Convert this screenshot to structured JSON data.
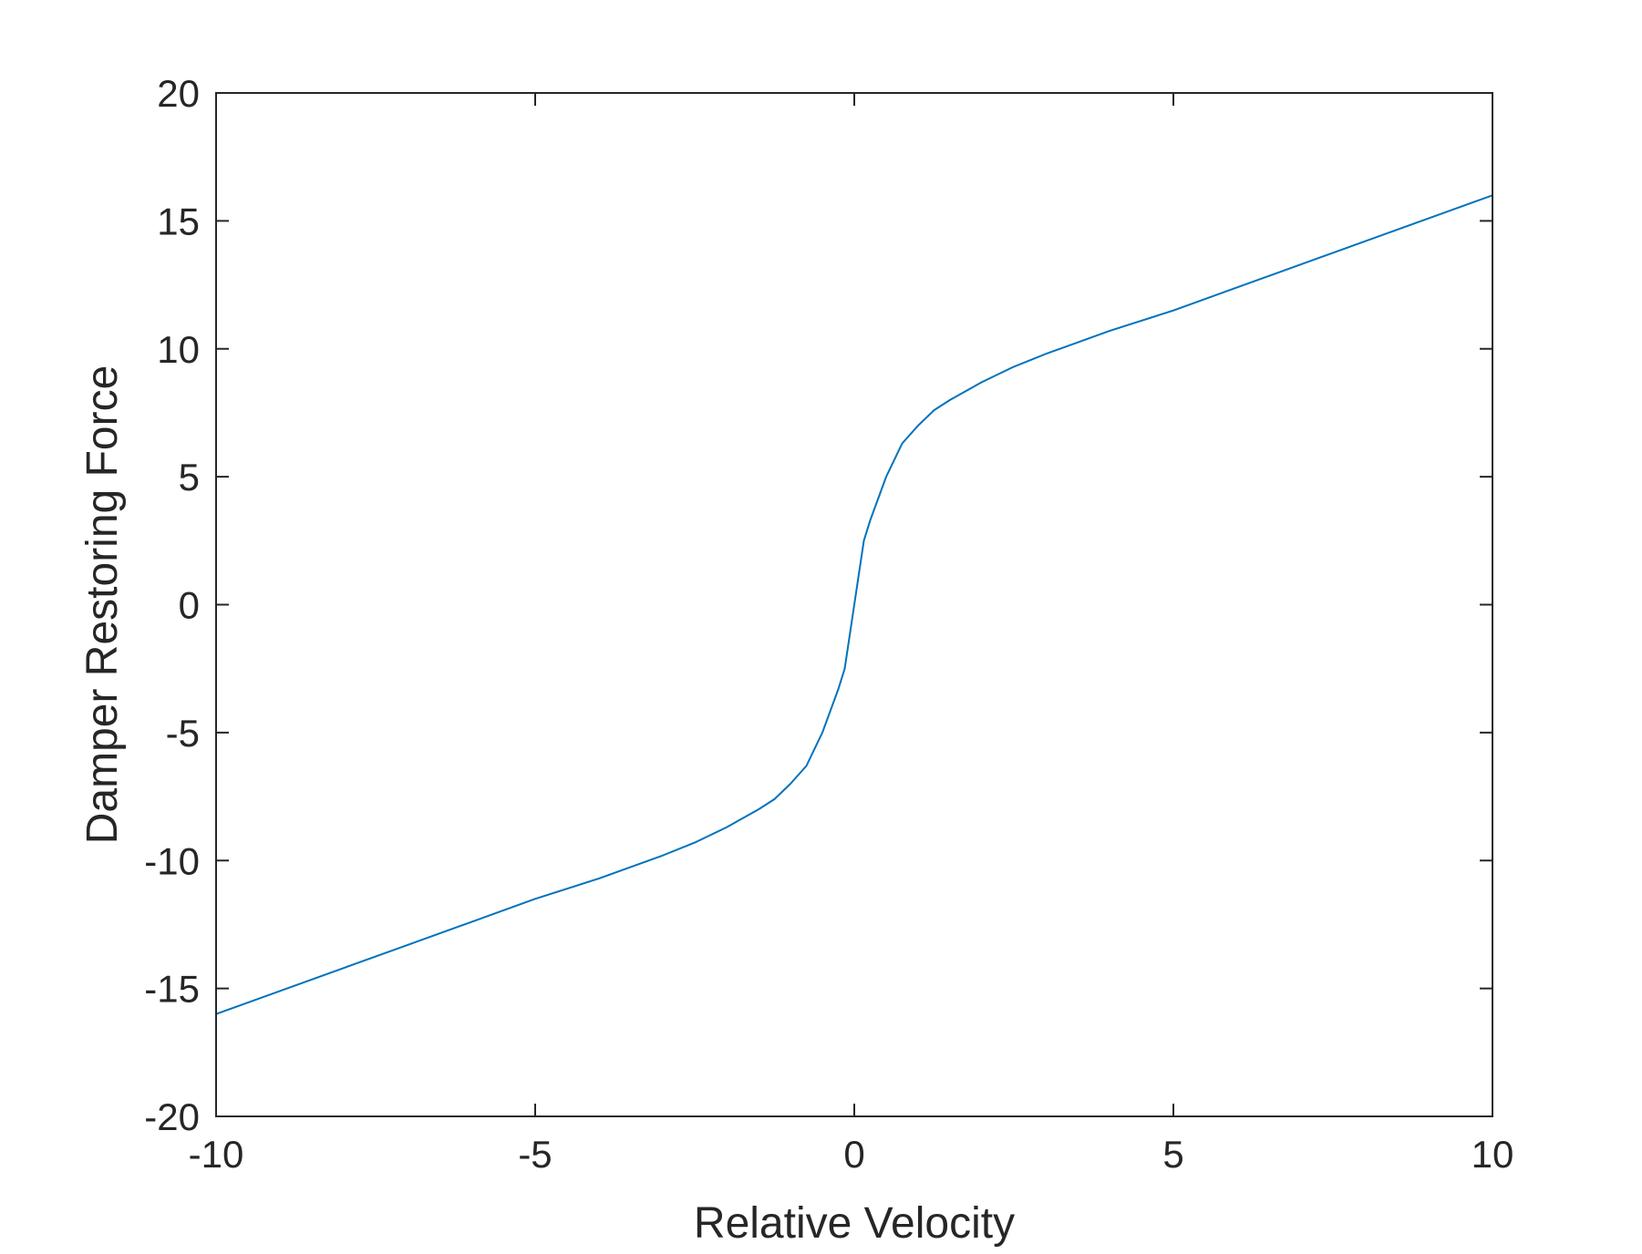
{
  "chart_data": {
    "type": "line",
    "title": "",
    "xlabel": "Relative Velocity",
    "ylabel": "Damper Restoring Force",
    "xlim": [
      -10,
      10
    ],
    "ylim": [
      -20,
      20
    ],
    "x_ticks": [
      -10,
      -5,
      0,
      5,
      10
    ],
    "y_ticks": [
      -20,
      -15,
      -10,
      -5,
      0,
      5,
      10,
      15,
      20
    ],
    "grid": false,
    "legend": "none",
    "series": [
      {
        "color": "#0072BD",
        "x": [
          -10,
          -9,
          -8,
          -7,
          -6,
          -5,
          -4,
          -3,
          -2.5,
          -2,
          -1.5,
          -1.25,
          -1,
          -0.75,
          -0.5,
          -0.25,
          -0.15,
          0,
          0.15,
          0.25,
          0.5,
          0.75,
          1,
          1.25,
          1.5,
          2,
          2.5,
          3,
          4,
          5,
          6,
          7,
          8,
          9,
          10
        ],
        "y": [
          -16.0,
          -15.1,
          -14.2,
          -13.3,
          -12.4,
          -11.5,
          -10.7,
          -9.8,
          -9.3,
          -8.7,
          -8.0,
          -7.6,
          -7.0,
          -6.3,
          -5.0,
          -3.3,
          -2.5,
          0,
          2.5,
          3.3,
          5.0,
          6.3,
          7.0,
          7.6,
          8.0,
          8.7,
          9.3,
          9.8,
          10.7,
          11.5,
          12.4,
          13.3,
          14.2,
          15.1,
          16.0
        ]
      }
    ]
  }
}
